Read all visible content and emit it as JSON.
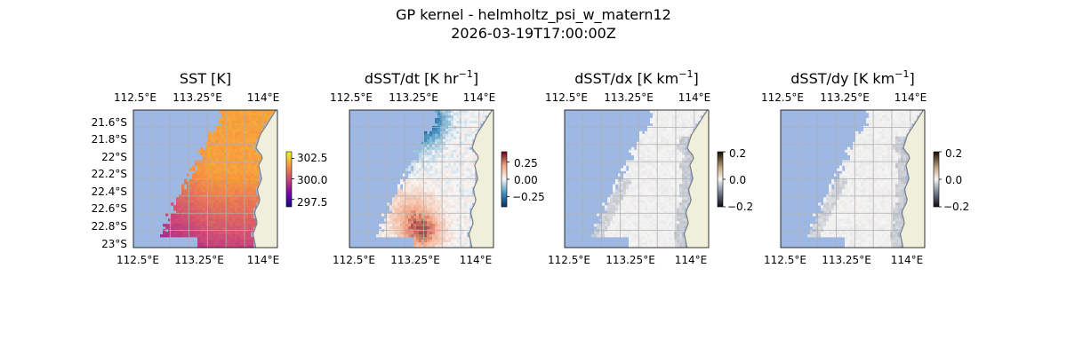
{
  "figure": {
    "title": "GP kernel - helmholtz_psi_w_matern12",
    "subtitle": "2026-03-19T17:00:00Z"
  },
  "colors": {
    "ocean_mask": "#9db8e3",
    "land": "#efefdc",
    "coast": "#7f7f7f",
    "grid": "#b0b0b0"
  },
  "chart_data": [
    {
      "type": "heatmap",
      "title": "SST [K]",
      "x_ticks": [
        "112.5°E",
        "113.25°E",
        "114°E"
      ],
      "x_tick_values": [
        112.5,
        113.25,
        114.0
      ],
      "y_ticks": [
        "21.6°S",
        "21.8°S",
        "22°S",
        "22.2°S",
        "22.4°S",
        "22.6°S",
        "22.8°S",
        "23°S"
      ],
      "y_tick_values": [
        -21.6,
        -21.8,
        -22.0,
        -22.2,
        -22.4,
        -22.6,
        -22.8,
        -23.0
      ],
      "xlim": [
        112.4,
        114.15
      ],
      "ylim": [
        -23.05,
        -21.45
      ],
      "colormap": "plasma",
      "colorbar": {
        "ticks": [
          "302.5",
          "300.0",
          "297.5"
        ],
        "tick_values": [
          302.5,
          300.0,
          297.5
        ],
        "range": [
          296.6,
          303.3
        ]
      },
      "grid": true
    },
    {
      "type": "heatmap",
      "title_prefix": "dSST/dt [K hr",
      "title_exp": "−1",
      "title_suffix": "]",
      "x_ticks": [
        "112.5°E",
        "113.25°E",
        "114°E"
      ],
      "x_tick_values": [
        112.5,
        113.25,
        114.0
      ],
      "xlim": [
        112.4,
        114.15
      ],
      "ylim": [
        -23.05,
        -21.45
      ],
      "colormap": "RdBu_r",
      "colorbar": {
        "ticks": [
          "0.25",
          "0.00",
          "−0.25"
        ],
        "tick_values": [
          0.25,
          0.0,
          -0.25
        ],
        "range": [
          -0.4,
          0.4
        ]
      },
      "grid": true
    },
    {
      "type": "heatmap",
      "title_prefix": "dSST/dx [K km",
      "title_exp": "−1",
      "title_suffix": "]",
      "x_ticks": [
        "112.5°E",
        "113.25°E",
        "114°E"
      ],
      "x_tick_values": [
        112.5,
        113.25,
        114.0
      ],
      "xlim": [
        112.4,
        114.15
      ],
      "ylim": [
        -23.05,
        -21.45
      ],
      "colormap": "diverging-gray-orange",
      "colorbar": {
        "ticks": [
          "0.2",
          "0.0",
          "−0.2"
        ],
        "tick_values": [
          0.2,
          0.0,
          -0.2
        ],
        "range": [
          -0.2,
          0.2
        ]
      },
      "grid": true
    },
    {
      "type": "heatmap",
      "title_prefix": "dSST/dy [K km",
      "title_exp": "−1",
      "title_suffix": "]",
      "x_ticks": [
        "112.5°E",
        "113.25°E",
        "114°E"
      ],
      "x_tick_values": [
        112.5,
        113.25,
        114.0
      ],
      "xlim": [
        112.4,
        114.15
      ],
      "ylim": [
        -23.05,
        -21.45
      ],
      "colormap": "diverging-gray-orange",
      "colorbar": {
        "ticks": [
          "0.2",
          "0.0",
          "−0.2"
        ],
        "tick_values": [
          0.2,
          0.0,
          -0.2
        ],
        "range": [
          -0.2,
          0.2
        ]
      },
      "grid": true
    }
  ]
}
